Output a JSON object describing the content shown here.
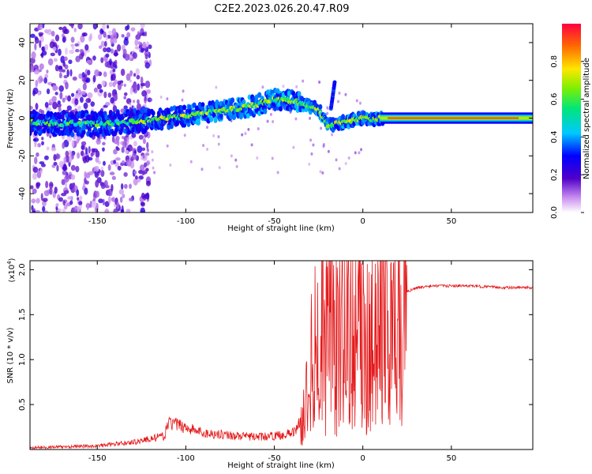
{
  "title": "C2E2.2023.026.20.47.R09",
  "chart_data": [
    {
      "type": "heatmap",
      "xlabel": "Height of straight line (km)",
      "ylabel": "Frequency (Hz)",
      "xlim": [
        -188,
        96
      ],
      "ylim": [
        -50,
        50
      ],
      "xticks": [
        -150,
        -100,
        -50,
        0,
        50
      ],
      "yticks": [
        -40,
        -20,
        0,
        20,
        40
      ],
      "colorbar": {
        "label": "Normalized spectral amplitude",
        "range": [
          0,
          1
        ],
        "ticks": [
          0.0,
          0.2,
          0.4,
          0.6,
          0.8
        ]
      },
      "ridge": {
        "x": [
          -188,
          -170,
          -150,
          -130,
          -110,
          -100,
          -90,
          -80,
          -70,
          -60,
          -50,
          -40,
          -35,
          -30,
          -25,
          -20,
          -15,
          -10,
          -5,
          0,
          5,
          10,
          20,
          40,
          60,
          80,
          96
        ],
        "frequency": [
          -2,
          -3,
          -3,
          -2,
          0,
          1,
          3,
          4,
          5,
          7,
          10,
          9,
          8,
          6,
          5,
          -4,
          -3,
          -2,
          -1,
          0,
          -1,
          0,
          0,
          0,
          0,
          0,
          0
        ]
      }
    },
    {
      "type": "line",
      "xlabel": "Height of straight line (km)",
      "ylabel": "SNR (10 * v/v)",
      "y_multiplier": "(x10^4)",
      "xlim": [
        -188,
        96
      ],
      "ylim": [
        0,
        2.1
      ],
      "xticks": [
        -150,
        -100,
        -50,
        0,
        50
      ],
      "yticks": [
        "0.5",
        "1.0",
        "1.5",
        "2.0"
      ],
      "yticks_values": [
        0.5,
        1.0,
        1.5,
        2.0
      ],
      "color": "#e41a1c",
      "x": [
        -188,
        -170,
        -150,
        -130,
        -120,
        -112,
        -110,
        -100,
        -90,
        -80,
        -70,
        -60,
        -50,
        -40,
        -35,
        -33,
        -30,
        -25,
        -20,
        -18,
        -15,
        -10,
        -5,
        0,
        3,
        8,
        10,
        15,
        20,
        25,
        30,
        40,
        50,
        60,
        70,
        80,
        96
      ],
      "values": [
        0.02,
        0.03,
        0.04,
        0.08,
        0.12,
        0.15,
        0.3,
        0.25,
        0.18,
        0.17,
        0.15,
        0.14,
        0.15,
        0.18,
        0.3,
        0.4,
        0.95,
        1.25,
        1.55,
        2.05,
        1.2,
        1.9,
        1.1,
        1.45,
        1.1,
        1.9,
        1.4,
        1.6,
        1.7,
        1.75,
        1.8,
        1.82,
        1.82,
        1.82,
        1.81,
        1.8,
        1.8
      ]
    }
  ],
  "colors": {
    "line": "#e41a1c",
    "axis": "#000000"
  }
}
